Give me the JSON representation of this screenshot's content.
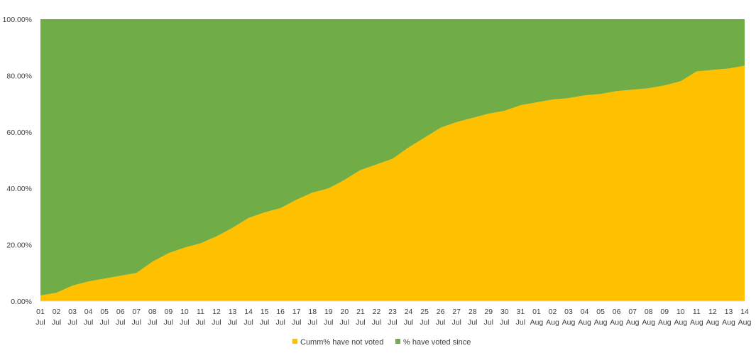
{
  "chart_data": {
    "type": "area",
    "stacked": true,
    "percent_stacked": true,
    "categories": [
      [
        "01",
        "Jul"
      ],
      [
        "02",
        "Jul"
      ],
      [
        "03",
        "Jul"
      ],
      [
        "04",
        "Jul"
      ],
      [
        "05",
        "Jul"
      ],
      [
        "06",
        "Jul"
      ],
      [
        "07",
        "Jul"
      ],
      [
        "08",
        "Jul"
      ],
      [
        "09",
        "Jul"
      ],
      [
        "10",
        "Jul"
      ],
      [
        "11",
        "Jul"
      ],
      [
        "12",
        "Jul"
      ],
      [
        "13",
        "Jul"
      ],
      [
        "14",
        "Jul"
      ],
      [
        "15",
        "Jul"
      ],
      [
        "16",
        "Jul"
      ],
      [
        "17",
        "Jul"
      ],
      [
        "18",
        "Jul"
      ],
      [
        "19",
        "Jul"
      ],
      [
        "20",
        "Jul"
      ],
      [
        "21",
        "Jul"
      ],
      [
        "22",
        "Jul"
      ],
      [
        "23",
        "Jul"
      ],
      [
        "24",
        "Jul"
      ],
      [
        "25",
        "Jul"
      ],
      [
        "26",
        "Jul"
      ],
      [
        "27",
        "Jul"
      ],
      [
        "28",
        "Jul"
      ],
      [
        "29",
        "Jul"
      ],
      [
        "30",
        "Jul"
      ],
      [
        "31",
        "Jul"
      ],
      [
        "01",
        "Aug"
      ],
      [
        "02",
        "Aug"
      ],
      [
        "03",
        "Aug"
      ],
      [
        "04",
        "Aug"
      ],
      [
        "05",
        "Aug"
      ],
      [
        "06",
        "Aug"
      ],
      [
        "07",
        "Aug"
      ],
      [
        "08",
        "Aug"
      ],
      [
        "09",
        "Aug"
      ],
      [
        "10",
        "Aug"
      ],
      [
        "11",
        "Aug"
      ],
      [
        "12",
        "Aug"
      ],
      [
        "13",
        "Aug"
      ],
      [
        "14",
        "Aug"
      ]
    ],
    "series": [
      {
        "name": "Cumm% have not voted",
        "color": "#FFC000",
        "values": [
          2,
          3,
          5.5,
          7,
          8,
          9,
          10,
          14,
          17,
          19,
          20.5,
          23,
          26,
          29.5,
          31.5,
          33,
          36,
          38.5,
          40,
          43,
          46.5,
          48.5,
          50.5,
          54.5,
          58,
          61.5,
          63.5,
          65,
          66.5,
          67.5,
          69.5,
          70.5,
          71.5,
          72,
          73,
          73.5,
          74.5,
          75,
          75.5,
          76.5,
          78,
          81.5,
          82,
          82.5,
          83.5
        ]
      },
      {
        "name": "% have voted since",
        "color": "#70AD47",
        "values": [
          98,
          97,
          94.5,
          93,
          92,
          91,
          90,
          86,
          83,
          81,
          79.5,
          77,
          74,
          70.5,
          68.5,
          67,
          64,
          61.5,
          60,
          57,
          53.5,
          51.5,
          49.5,
          45.5,
          42,
          38.5,
          36.5,
          35,
          33.5,
          32.5,
          30.5,
          29.5,
          28.5,
          28,
          27,
          26.5,
          25.5,
          25,
          24.5,
          23.5,
          22,
          18.5,
          18,
          17.5,
          16.5
        ]
      }
    ],
    "ylim": [
      0,
      100
    ],
    "y_ticks": [
      "0.00%",
      "20.00%",
      "40.00%",
      "60.00%",
      "80.00%",
      "100.00%"
    ],
    "y_tick_values": [
      0,
      20,
      40,
      60,
      80,
      100
    ],
    "grid": false,
    "legend_position": "bottom"
  }
}
